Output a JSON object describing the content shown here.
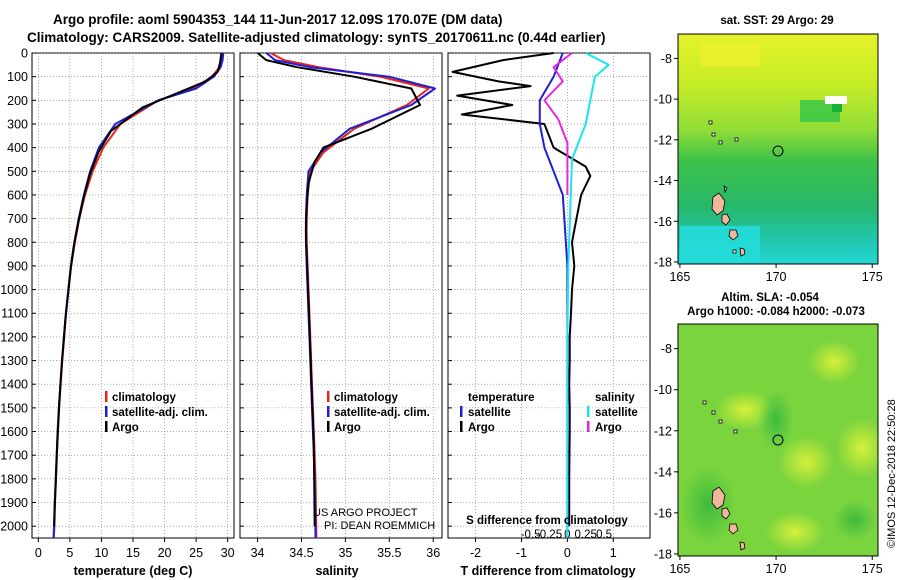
{
  "header": {
    "line1": "Argo profile: aoml 5904353_144 11-Jun-2017 12.09S 170.07E (DM data)",
    "line2": "Climatology: CARS2009. Satellite-adjusted climatology: synTS_20170611.nc (0.44d earlier)"
  },
  "colors": {
    "climatology": "#e8241b",
    "satellite": "#1f1fd6",
    "argo": "#000000",
    "sat_salinity": "#18e6ee",
    "clim_salinity_diff": "#e627e0"
  },
  "credit": {
    "line1": "US ARGO PROJECT",
    "line2": "PI: DEAN ROEMMICH"
  },
  "watermark": "©IMOS 12-Dec-2018 22:50:28",
  "chart_data": [
    {
      "type": "line",
      "name": "temperature-profile",
      "xlabel": "temperature (deg C)",
      "xlim": [
        -1,
        31
      ],
      "ylim": [
        0,
        2050
      ],
      "xticks": [
        0,
        5,
        10,
        15,
        20,
        25,
        30
      ],
      "yticks": [
        0,
        100,
        200,
        300,
        400,
        500,
        600,
        700,
        800,
        900,
        1000,
        1100,
        1200,
        1300,
        1400,
        1500,
        1600,
        1700,
        1800,
        1900,
        2000
      ],
      "legend": [
        "climatology",
        "satellite-adj. clim.",
        "Argo"
      ],
      "series": [
        {
          "name": "climatology",
          "color": "#e8241b",
          "x": [
            29.2,
            29.1,
            28.7,
            27.5,
            24.5,
            19,
            13,
            10.3,
            8.6,
            7.4,
            6.5,
            5.8,
            5.2,
            4.8,
            4.4,
            4.1,
            3.8,
            3.55,
            3.3,
            3.1,
            2.95,
            2.8,
            2.65,
            2.55,
            2.45,
            2.4
          ],
          "y": [
            0,
            30,
            60,
            100,
            150,
            200,
            300,
            400,
            500,
            600,
            700,
            800,
            900,
            1000,
            1100,
            1200,
            1300,
            1400,
            1500,
            1600,
            1700,
            1800,
            1900,
            2000,
            2050,
            2050
          ]
        },
        {
          "name": "satellite-adj. clim.",
          "color": "#1f1fd6",
          "x": [
            29.3,
            29.2,
            28.9,
            27.8,
            25,
            19,
            12.2,
            9.6,
            8.2,
            7.2,
            6.4,
            5.7,
            5.15,
            4.75,
            4.35,
            4.05,
            3.75,
            3.5,
            3.25,
            3.05,
            2.9,
            2.75,
            2.6,
            2.5,
            2.4
          ],
          "y": [
            0,
            30,
            60,
            100,
            150,
            200,
            300,
            400,
            500,
            600,
            700,
            800,
            900,
            1000,
            1100,
            1200,
            1300,
            1400,
            1500,
            1600,
            1700,
            1800,
            1900,
            2000,
            2050
          ]
        },
        {
          "name": "Argo",
          "color": "#000000",
          "x": [
            29.0,
            28.8,
            28.4,
            26.5,
            22,
            16.5,
            11.5,
            9.5,
            8.1,
            7.1,
            6.3,
            5.6,
            5.1,
            4.7,
            4.3,
            4.0,
            3.7,
            3.45,
            3.25,
            3.05,
            2.9,
            2.75,
            2.6,
            2.5
          ],
          "y": [
            0,
            40,
            80,
            120,
            170,
            230,
            330,
            420,
            520,
            620,
            720,
            820,
            920,
            1020,
            1120,
            1220,
            1320,
            1420,
            1520,
            1620,
            1720,
            1820,
            1920,
            2000
          ]
        }
      ]
    },
    {
      "type": "line",
      "name": "salinity-profile",
      "xlabel": "salinity",
      "xlim": [
        33.8,
        36.1
      ],
      "ylim": [
        0,
        2050
      ],
      "xticks": [
        34,
        34.5,
        35,
        35.5,
        36
      ],
      "legend": [
        "climatology",
        "satellite-adj. clim.",
        "Argo"
      ],
      "series": [
        {
          "name": "climatology",
          "color": "#e8241b",
          "x": [
            34.15,
            34.3,
            34.7,
            35.4,
            35.95,
            35.7,
            35.1,
            34.75,
            34.6,
            34.57,
            34.56,
            34.56,
            34.57,
            34.58,
            34.59,
            34.6,
            34.61,
            34.62,
            34.63,
            34.64,
            34.65,
            34.66,
            34.67
          ],
          "y": [
            0,
            30,
            60,
            100,
            150,
            220,
            320,
            420,
            500,
            600,
            700,
            800,
            900,
            1000,
            1100,
            1200,
            1300,
            1400,
            1500,
            1600,
            1700,
            1800,
            2050
          ]
        },
        {
          "name": "satellite-adj. clim.",
          "color": "#1f1fd6",
          "x": [
            34.1,
            34.2,
            34.6,
            35.5,
            36.02,
            35.75,
            35.05,
            34.72,
            34.58,
            34.56,
            34.55,
            34.55,
            34.56,
            34.57,
            34.58,
            34.59,
            34.6,
            34.61,
            34.62,
            34.63,
            34.64,
            34.65,
            34.66
          ],
          "y": [
            0,
            30,
            60,
            100,
            150,
            220,
            320,
            420,
            500,
            600,
            700,
            800,
            900,
            1000,
            1100,
            1200,
            1300,
            1400,
            1500,
            1600,
            1700,
            1800,
            2050
          ]
        },
        {
          "name": "Argo",
          "color": "#000000",
          "x": [
            34.0,
            34.1,
            34.45,
            35.1,
            35.75,
            35.85,
            35.3,
            34.75,
            34.65,
            34.58,
            34.56,
            34.55,
            34.56,
            34.57,
            34.58,
            34.59,
            34.6,
            34.61,
            34.62,
            34.63,
            34.64,
            34.65
          ],
          "y": [
            0,
            30,
            60,
            100,
            150,
            220,
            320,
            400,
            460,
            550,
            650,
            750,
            850,
            950,
            1050,
            1150,
            1250,
            1350,
            1450,
            1550,
            1650,
            2000
          ]
        }
      ]
    },
    {
      "type": "line",
      "name": "difference-profile",
      "xlabel": "T difference from climatology",
      "xlabel2": "S difference from climatology",
      "xlim": [
        -2.6,
        1.8
      ],
      "ylim": [
        0,
        2050
      ],
      "xticks": [
        -2,
        -1,
        0,
        1
      ],
      "xticks_s": [
        "-0.5",
        "-0.25",
        "0",
        "0.25",
        "0.5"
      ],
      "legend_left_title": "temperature",
      "legend_right_title": "salinity",
      "legend_left": [
        "satellite",
        "Argo"
      ],
      "legend_right": [
        "satellite",
        "Argo"
      ],
      "series": [
        {
          "name": "T-argo-minus-clim",
          "color": "#000000",
          "x": [
            -0.3,
            -1.4,
            -2.5,
            -1.5,
            -0.8,
            -2.4,
            -1.2,
            -2.3,
            -0.5,
            -0.3,
            0.4,
            0.5,
            0.3,
            0.2,
            0.1,
            0.15,
            0.1,
            0.08,
            0.05,
            0.05,
            0.04,
            0.05,
            0.05,
            0.04,
            0.04
          ],
          "y": [
            0,
            30,
            80,
            120,
            140,
            180,
            220,
            260,
            300,
            400,
            480,
            520,
            600,
            700,
            800,
            900,
            1000,
            1100,
            1200,
            1300,
            1400,
            1500,
            1600,
            1800,
            2000
          ]
        },
        {
          "name": "T-satellite-minus-clim",
          "color": "#1f1fd6",
          "x": [
            -0.1,
            -0.3,
            -0.6,
            -0.6,
            -0.5,
            -0.1,
            0.0,
            0.0,
            0.0
          ],
          "y": [
            0,
            100,
            200,
            300,
            400,
            600,
            900,
            1200,
            2050
          ]
        },
        {
          "name": "S-satellite-minus-clim",
          "color": "#18e6ee",
          "x": [
            0.4,
            0.9,
            0.6,
            0.5,
            0.4,
            0.1,
            0.02,
            0.0,
            0.0
          ],
          "y": [
            0,
            50,
            100,
            200,
            300,
            450,
            900,
            1200,
            2050
          ]
        },
        {
          "name": "S-argo-minus-clim",
          "color": "#e627e0",
          "x": [
            0.1,
            -0.3,
            -0.1,
            -0.5,
            -0.2,
            0.0,
            0.0
          ],
          "y": [
            0,
            60,
            120,
            200,
            280,
            380,
            600
          ]
        }
      ]
    },
    {
      "type": "heatmap",
      "name": "sst-map",
      "title": "sat. SST: 29 Argo: 29",
      "xticks": [
        165,
        170,
        175
      ],
      "yticks": [
        -8,
        -10,
        -12,
        -14,
        -16,
        -18
      ],
      "xlim": [
        164.9,
        175.3
      ],
      "ylim": [
        -18.1,
        -6.8
      ],
      "argo_position": {
        "lon": 170.07,
        "lat": -12.09
      }
    },
    {
      "type": "heatmap",
      "name": "sla-map",
      "title": "Altim. SLA: -0.054",
      "subtitle": "Argo h1000: -0.084 h2000: -0.073",
      "xticks": [
        165,
        170,
        175
      ],
      "yticks": [
        -8,
        -10,
        -12,
        -14,
        -16,
        -18
      ],
      "xlim": [
        164.9,
        175.3
      ],
      "ylim": [
        -18.1,
        -6.8
      ],
      "argo_position": {
        "lon": 170.07,
        "lat": -12.09
      }
    }
  ]
}
